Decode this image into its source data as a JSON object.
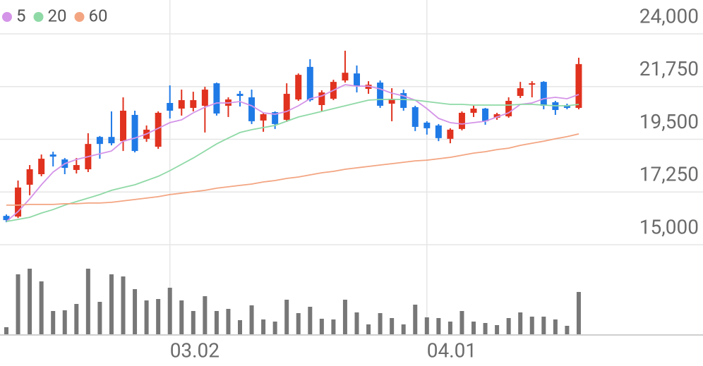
{
  "chart_data": {
    "type": "candlestick",
    "categories": [
      null,
      null,
      null,
      null,
      null,
      null,
      null,
      null,
      null,
      null,
      null,
      null,
      null,
      null,
      "03.02",
      null,
      null,
      null,
      null,
      null,
      null,
      null,
      null,
      null,
      null,
      null,
      null,
      null,
      null,
      null,
      null,
      null,
      null,
      null,
      null,
      null,
      "04.01",
      null,
      null,
      null,
      null,
      null,
      null,
      null,
      null,
      null,
      null,
      null,
      null,
      null
    ],
    "open": [
      16230,
      16200,
      17560,
      18010,
      18850,
      18640,
      18190,
      18220,
      19600,
      19600,
      19420,
      20540,
      19520,
      19180,
      21050,
      20810,
      20840,
      20930,
      21890,
      20930,
      21440,
      21290,
      20300,
      20660,
      20330,
      21200,
      22590,
      20960,
      21230,
      22010,
      22310,
      21650,
      21920,
      21020,
      21470,
      20870,
      20210,
      20090,
      19520,
      19940,
      20630,
      20810,
      20420,
      20480,
      21350,
      21830,
      21950,
      21080,
      20960,
      20840
    ],
    "close": [
      16050,
      17440,
      18220,
      18670,
      18760,
      18280,
      18400,
      19300,
      19300,
      19330,
      20720,
      19000,
      19910,
      20630,
      20720,
      21170,
      21170,
      21620,
      20600,
      21200,
      21350,
      20270,
      20570,
      20150,
      21440,
      22250,
      21170,
      21500,
      21950,
      22340,
      21770,
      21830,
      20930,
      21230,
      20840,
      20030,
      19970,
      19550,
      19910,
      20630,
      20810,
      20270,
      20570,
      21140,
      21680,
      21890,
      20930,
      20750,
      20840,
      22710
    ],
    "high": [
      16290,
      17740,
      18400,
      18850,
      18970,
      18700,
      18700,
      19760,
      19640,
      20690,
      21290,
      20720,
      20090,
      20690,
      21800,
      21620,
      21530,
      21740,
      21920,
      21290,
      21560,
      21620,
      20630,
      20690,
      21890,
      22310,
      22920,
      21590,
      22040,
      23280,
      22650,
      21980,
      22010,
      21680,
      21620,
      20930,
      20270,
      20150,
      19970,
      20690,
      20930,
      20840,
      20630,
      21290,
      21950,
      21980,
      21980,
      21140,
      21020,
      22980
    ],
    "low": [
      15960,
      16140,
      17110,
      17920,
      18340,
      18010,
      18040,
      18100,
      18670,
      19240,
      19000,
      18940,
      19390,
      19090,
      20390,
      20510,
      20690,
      19790,
      20510,
      20450,
      20900,
      20150,
      19820,
      19940,
      20240,
      21140,
      21110,
      20690,
      21170,
      21920,
      21500,
      21440,
      20840,
      20270,
      20720,
      19850,
      19700,
      19420,
      19330,
      19880,
      20450,
      20120,
      20330,
      20420,
      21260,
      21290,
      20780,
      20540,
      20780,
      20780
    ],
    "up_color": "#e0321f",
    "down_color": "#1f7ae6",
    "series": [
      {
        "name": "5",
        "color": "#d494e8",
        "values": [
          15990,
          16415,
          16957,
          17560,
          18100,
          18460,
          18640,
          18760,
          18880,
          19000,
          19420,
          19550,
          19730,
          19970,
          20210,
          20330,
          20630,
          20870,
          21050,
          21050,
          21110,
          20930,
          20630,
          20570,
          20690,
          20930,
          21230,
          21350,
          21590,
          21830,
          21770,
          21770,
          21650,
          21470,
          21350,
          21170,
          20810,
          20390,
          20210,
          20150,
          20210,
          20270,
          20450,
          20630,
          20990,
          21050,
          21230,
          21290,
          21230,
          21410
        ]
      },
      {
        "name": "20",
        "color": "#8fd9a6",
        "values": [
          15990,
          16080,
          16170,
          16350,
          16500,
          16690,
          16840,
          16990,
          17140,
          17320,
          17440,
          17560,
          17740,
          17920,
          18160,
          18430,
          18700,
          19000,
          19300,
          19550,
          19790,
          19910,
          20000,
          20090,
          20270,
          20450,
          20570,
          20690,
          20810,
          20930,
          21050,
          21170,
          21200,
          21200,
          21200,
          21170,
          21110,
          21050,
          20990,
          20990,
          20960,
          20960,
          20960,
          20960,
          20990,
          20990,
          20960,
          20930,
          20930,
          20990
        ]
      },
      {
        "name": "60",
        "color": "#f3a582",
        "values": [
          16690,
          16690,
          16720,
          16720,
          16720,
          16750,
          16750,
          16780,
          16780,
          16810,
          16870,
          16930,
          16990,
          17050,
          17140,
          17200,
          17260,
          17320,
          17410,
          17470,
          17530,
          17590,
          17680,
          17740,
          17830,
          17890,
          17980,
          18070,
          18130,
          18220,
          18280,
          18340,
          18400,
          18460,
          18520,
          18580,
          18610,
          18670,
          18730,
          18820,
          18910,
          18970,
          19060,
          19120,
          19240,
          19330,
          19420,
          19520,
          19610,
          19730
        ]
      }
    ],
    "ylim": [
      15000,
      24000
    ],
    "yticks": [
      {
        "value": 15000,
        "label": "15,000"
      },
      {
        "value": 17250,
        "label": "17,250"
      },
      {
        "value": 19500,
        "label": "19,500"
      },
      {
        "value": 21750,
        "label": "21,750"
      },
      {
        "value": 24000,
        "label": "24,000"
      }
    ],
    "grid": true,
    "volume": {
      "color": "#777777",
      "ylim": [
        0,
        100
      ],
      "values": [
        10,
        85,
        93,
        75,
        33,
        34,
        43,
        93,
        46,
        85,
        82,
        64,
        48,
        50,
        66,
        48,
        33,
        54,
        33,
        36,
        20,
        41,
        21,
        18,
        49,
        30,
        39,
        22,
        21,
        49,
        31,
        14,
        30,
        23,
        14,
        42,
        24,
        23,
        18,
        33,
        18,
        16,
        13,
        23,
        31,
        25,
        25,
        21,
        12,
        60
      ]
    }
  }
}
